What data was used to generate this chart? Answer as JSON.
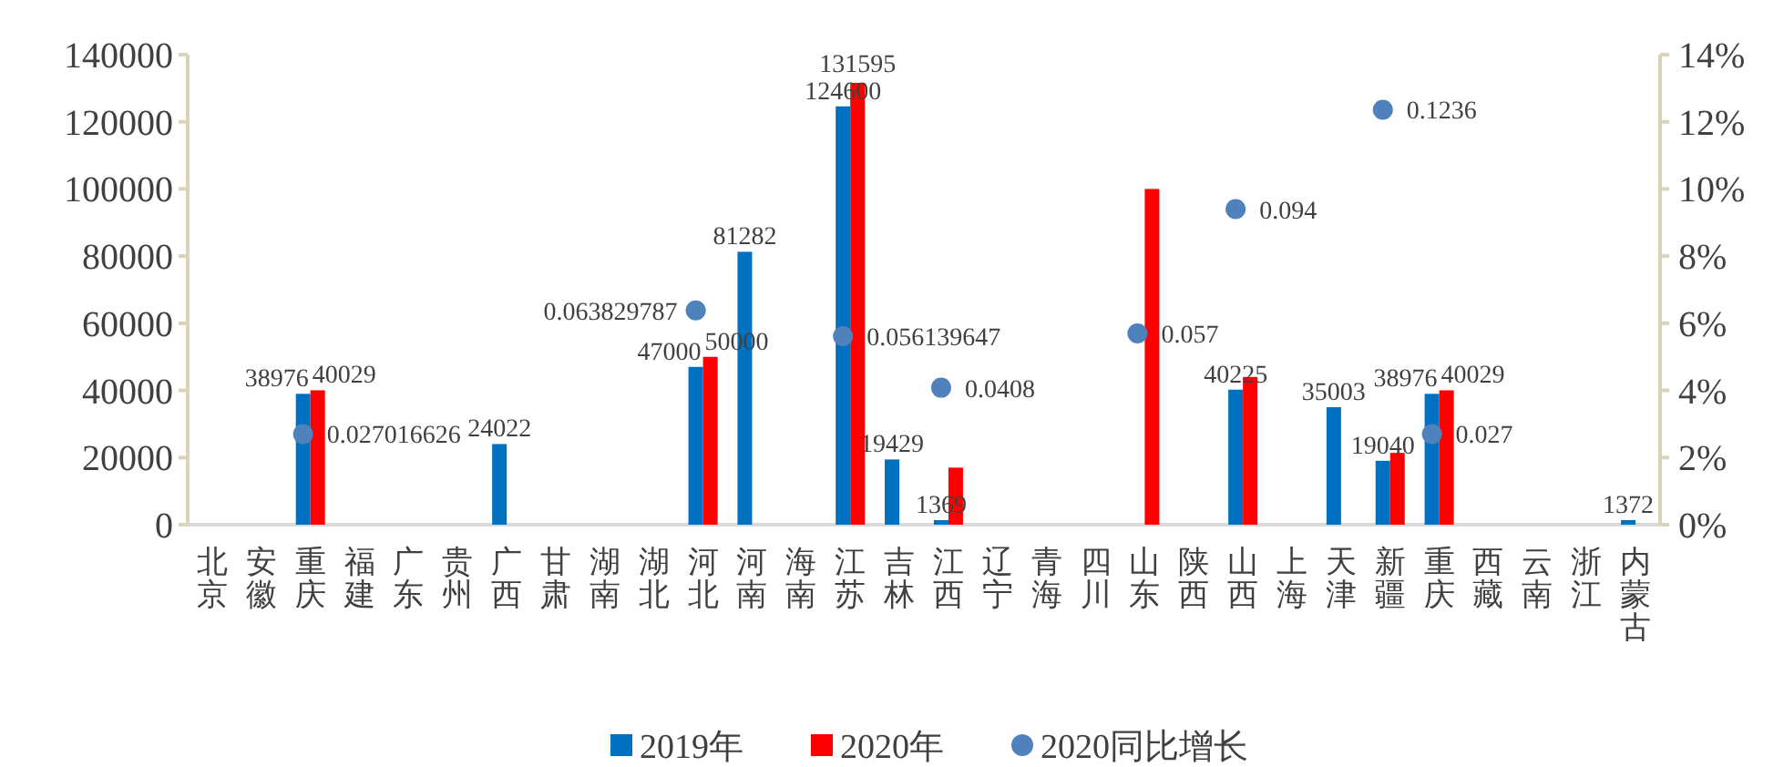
{
  "chart_data": {
    "type": "bar",
    "categories": [
      "北京",
      "安徽",
      "重庆",
      "福建",
      "广东",
      "贵州",
      "广西",
      "甘肃",
      "湖南",
      "湖北",
      "河北",
      "河南",
      "海南",
      "江苏",
      "吉林",
      "江西",
      "辽宁",
      "青海",
      "四川",
      "山东",
      "陕西",
      "山西",
      "上海",
      "天津",
      "新疆",
      "重庆",
      "西藏",
      "云南",
      "浙江",
      "内蒙古"
    ],
    "series": [
      {
        "name": "2019年",
        "color": "#0070c0",
        "values": [
          null,
          null,
          38976,
          null,
          null,
          null,
          24022,
          null,
          null,
          null,
          47000,
          81282,
          null,
          124600,
          19429,
          1369,
          null,
          null,
          null,
          null,
          null,
          40225,
          null,
          35003,
          19040,
          38976,
          null,
          null,
          null,
          1372
        ],
        "value_labels": [
          null,
          null,
          "38976",
          null,
          null,
          null,
          "24022",
          null,
          null,
          null,
          "47000",
          "81282",
          null,
          "124600",
          "19429",
          "1369",
          null,
          null,
          null,
          null,
          null,
          "40225",
          null,
          "35003",
          "19040",
          "38976",
          null,
          null,
          null,
          "1372"
        ]
      },
      {
        "name": "2020年",
        "color": "#ff0000",
        "values": [
          null,
          null,
          40029,
          null,
          null,
          null,
          null,
          null,
          null,
          null,
          50000,
          null,
          null,
          131595,
          null,
          17000,
          null,
          null,
          null,
          100000,
          null,
          44000,
          null,
          null,
          21400,
          40029,
          null,
          null,
          null,
          null
        ],
        "value_labels": [
          null,
          null,
          "40029",
          null,
          null,
          null,
          null,
          null,
          null,
          null,
          "50000",
          null,
          null,
          "131595",
          null,
          null,
          null,
          null,
          null,
          null,
          null,
          null,
          null,
          null,
          null,
          "40029",
          null,
          null,
          null,
          null
        ]
      },
      {
        "name": "2020同比增长",
        "type": "scatter",
        "axis": "y2",
        "color": "#4f81bd",
        "values": [
          null,
          null,
          0.027016626,
          null,
          null,
          null,
          null,
          null,
          null,
          null,
          0.063829787,
          null,
          null,
          0.056139647,
          null,
          0.0408,
          null,
          null,
          null,
          0.057,
          null,
          0.094,
          null,
          null,
          0.1236,
          0.027,
          null,
          null,
          null,
          null
        ],
        "value_labels": [
          null,
          null,
          "0.027016626",
          null,
          null,
          null,
          null,
          null,
          null,
          null,
          "0.063829787",
          null,
          null,
          "0.056139647",
          null,
          "0.0408",
          null,
          null,
          null,
          "0.057",
          null,
          "0.094",
          null,
          null,
          "0.1236",
          "0.027",
          null,
          null,
          null,
          null
        ]
      }
    ],
    "ylim": [
      0,
      140000
    ],
    "yticks": [
      0,
      20000,
      40000,
      60000,
      80000,
      100000,
      120000,
      140000
    ],
    "y2lim": [
      0,
      0.14
    ],
    "y2ticks": [
      {
        "value": 0,
        "label": "0%"
      },
      {
        "value": 0.02,
        "label": "2%"
      },
      {
        "value": 0.04,
        "label": "4%"
      },
      {
        "value": 0.06,
        "label": "6%"
      },
      {
        "value": 0.08,
        "label": "8%"
      },
      {
        "value": 0.1,
        "label": "10%"
      },
      {
        "value": 0.12,
        "label": "12%"
      },
      {
        "value": 0.14,
        "label": "14%"
      }
    ],
    "marker": "circle",
    "grid": false,
    "legend": "bottom"
  }
}
